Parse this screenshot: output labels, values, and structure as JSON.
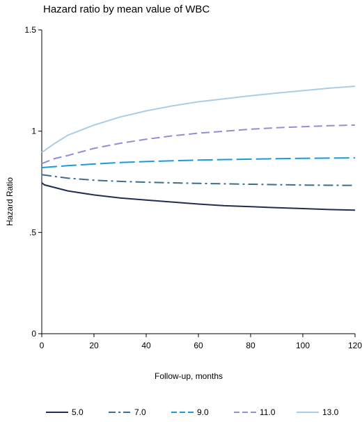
{
  "chart_data": {
    "type": "line",
    "title": "Hazard ratio by mean value of WBC",
    "xlabel": "Follow-up,   months",
    "ylabel": "Hazard Ratio",
    "xlim": [
      0,
      120
    ],
    "ylim": [
      0,
      1.5
    ],
    "x_ticks": [
      0,
      20,
      40,
      60,
      80,
      100,
      120
    ],
    "y_ticks": [
      {
        "value": 0,
        "label": "0"
      },
      {
        "value": 0.5,
        "label": ".5"
      },
      {
        "value": 1,
        "label": "1"
      },
      {
        "value": 1.5,
        "label": "1.5"
      }
    ],
    "grid": false,
    "legend_position": "bottom",
    "series": [
      {
        "name": "5.0",
        "color": "#1f2d52",
        "dash": "solid",
        "x": [
          0,
          1,
          10,
          20,
          30,
          40,
          50,
          60,
          70,
          80,
          90,
          100,
          110,
          120
        ],
        "y": [
          0.745,
          0.735,
          0.705,
          0.685,
          0.67,
          0.66,
          0.65,
          0.64,
          0.632,
          0.627,
          0.622,
          0.618,
          0.613,
          0.61
        ]
      },
      {
        "name": "7.0",
        "color": "#3b6e8e",
        "dash": "dashdot",
        "x": [
          0,
          10,
          20,
          30,
          40,
          50,
          60,
          70,
          80,
          90,
          100,
          110,
          120
        ],
        "y": [
          0.785,
          0.768,
          0.758,
          0.752,
          0.748,
          0.745,
          0.742,
          0.74,
          0.738,
          0.736,
          0.734,
          0.733,
          0.732
        ]
      },
      {
        "name": "9.0",
        "color": "#1a9bd7",
        "dash": "longdash",
        "x": [
          0,
          10,
          20,
          30,
          40,
          50,
          60,
          70,
          80,
          90,
          100,
          110,
          120
        ],
        "y": [
          0.82,
          0.83,
          0.838,
          0.845,
          0.85,
          0.854,
          0.857,
          0.86,
          0.862,
          0.864,
          0.866,
          0.867,
          0.868
        ]
      },
      {
        "name": "11.0",
        "color": "#8f8fd9",
        "dash": "dash",
        "x": [
          0,
          5,
          10,
          20,
          30,
          40,
          50,
          60,
          70,
          80,
          90,
          100,
          110,
          120
        ],
        "y": [
          0.84,
          0.865,
          0.88,
          0.915,
          0.94,
          0.96,
          0.977,
          0.99,
          1.0,
          1.01,
          1.017,
          1.022,
          1.027,
          1.03
        ]
      },
      {
        "name": "13.0",
        "color": "#a9cde6",
        "dash": "solid",
        "x": [
          0,
          5,
          10,
          20,
          30,
          40,
          50,
          60,
          70,
          80,
          90,
          100,
          110,
          120
        ],
        "y": [
          0.895,
          0.94,
          0.98,
          1.03,
          1.07,
          1.1,
          1.125,
          1.145,
          1.16,
          1.175,
          1.188,
          1.2,
          1.212,
          1.222
        ]
      }
    ]
  }
}
